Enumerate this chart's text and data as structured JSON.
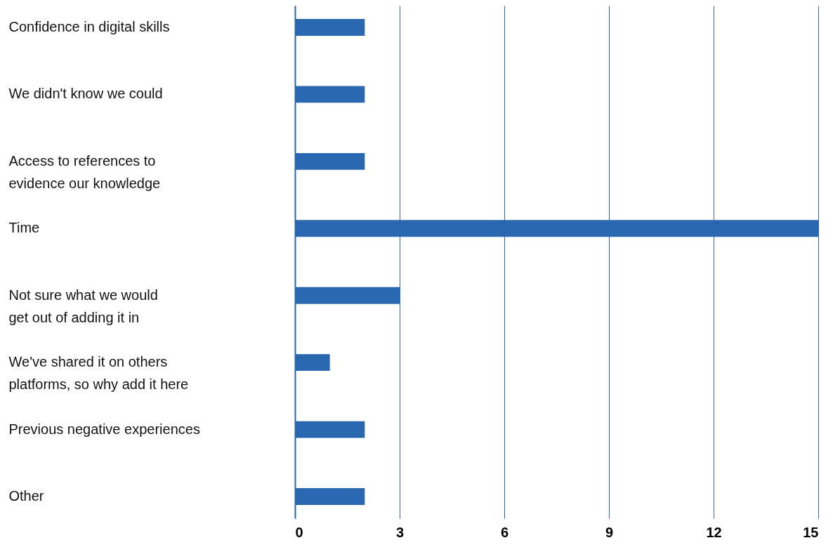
{
  "chart_data": {
    "type": "bar",
    "orientation": "horizontal",
    "categories": [
      "Confidence in digital skills",
      "We didn't know we could",
      "Access to references to\nevidence our knowledge",
      "Time",
      "Not sure what we would\nget out of adding it in",
      "We've shared it on others\nplatforms, so why add it here",
      "Previous negative experiences",
      "Other"
    ],
    "values": [
      2,
      2,
      2,
      15,
      3,
      1,
      2,
      2
    ],
    "color": "#2a67b1",
    "xlim": [
      0,
      15
    ],
    "xticks": [
      0,
      3,
      6,
      9,
      12,
      15
    ],
    "grid": "x"
  }
}
